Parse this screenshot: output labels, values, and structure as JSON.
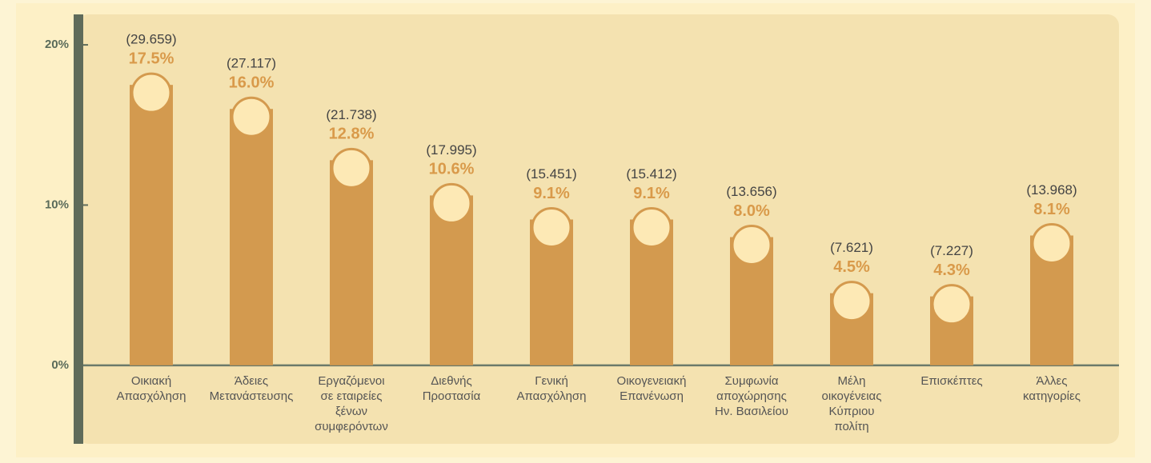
{
  "chart_data": {
    "type": "bar",
    "categories": [
      [
        "Οικιακή",
        "Απασχόληση"
      ],
      [
        "Άδειες",
        "Μετανάστευσης"
      ],
      [
        "Εργαζόμενοι",
        "σε εταιρείες",
        "ξένων",
        "συμφερόντων"
      ],
      [
        "Διεθνής",
        "Προστασία"
      ],
      [
        "Γενική",
        "Απασχόληση"
      ],
      [
        "Οικογενειακή",
        "Επανένωση"
      ],
      [
        "Συμφωνία",
        "αποχώρησης",
        "Ην. Βασιλείου"
      ],
      [
        "Μέλη",
        "οικογένειας",
        "Κύπριου",
        "πολίτη"
      ],
      [
        "Επισκέπτες"
      ],
      [
        "Άλλες",
        "κατηγορίες"
      ]
    ],
    "values": [
      17.5,
      16.0,
      12.8,
      10.6,
      9.1,
      9.1,
      8.0,
      4.5,
      4.3,
      8.1
    ],
    "value_labels": [
      "17.5%",
      "16.0%",
      "12.8%",
      "10.6%",
      "9.1%",
      "9.1%",
      "8.0%",
      "4.5%",
      "4.3%",
      "8.1%"
    ],
    "counts": [
      29659,
      27117,
      21738,
      17995,
      15451,
      15412,
      13656,
      7621,
      7227,
      13968
    ],
    "count_labels": [
      "(29.659)",
      "(27.117)",
      "(21.738)",
      "(17.995)",
      "(15.451)",
      "(15.412)",
      "(13.656)",
      "(7.621)",
      "(7.227)",
      "(13.968)"
    ],
    "color": "#d39a4f",
    "ylim": [
      -4.9,
      21.9
    ],
    "yticks": [
      {
        "value": 0,
        "label": "0%"
      },
      {
        "value": 10,
        "label": "10%"
      },
      {
        "value": 20,
        "label": "20%"
      }
    ]
  }
}
